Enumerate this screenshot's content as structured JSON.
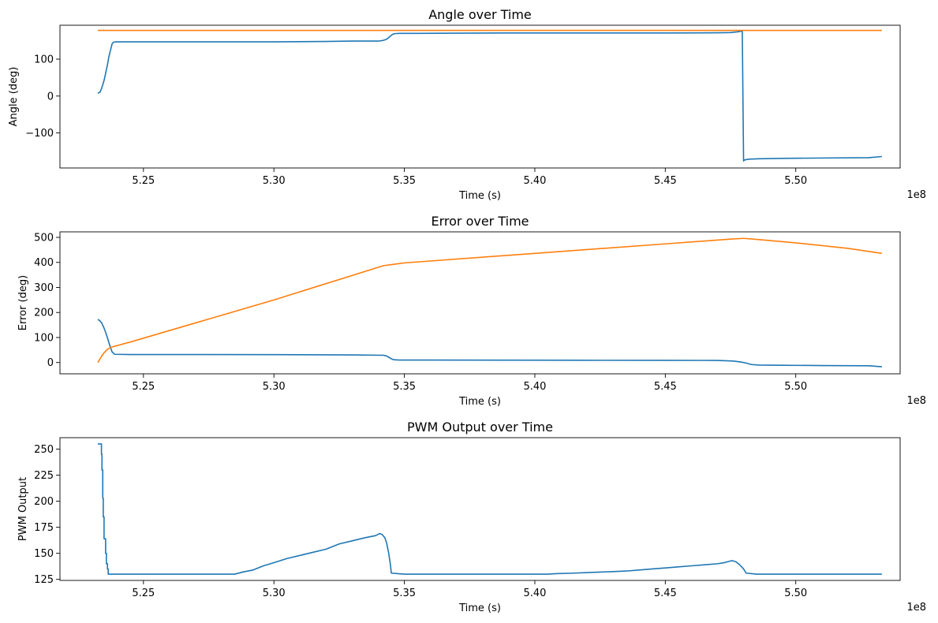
{
  "offset_text": "1e8",
  "chart_data": [
    {
      "type": "line",
      "title": "Angle over Time",
      "xlabel": "Time (s)",
      "ylabel": "Angle (deg)",
      "x_offset": "1e8",
      "xlim": [
        5.218,
        5.54
      ],
      "ylim": [
        -195,
        192
      ],
      "xticks": [
        5.25,
        5.3,
        5.35,
        5.4,
        5.45,
        5.5
      ],
      "xtick_labels": [
        "5.25",
        "5.30",
        "5.35",
        "5.40",
        "5.45",
        "5.50"
      ],
      "yticks": [
        -100,
        0,
        100
      ],
      "ytick_labels": [
        "−100",
        "0",
        "100"
      ],
      "series": [
        {
          "color": "#1f77b4",
          "x": [
            5.2325,
            5.2333,
            5.2338,
            5.2344,
            5.235,
            5.2356,
            5.2362,
            5.2368,
            5.2375,
            5.238,
            5.2385,
            5.2395,
            5.245,
            5.26,
            5.28,
            5.3,
            5.32,
            5.33,
            5.34,
            5.342,
            5.3432,
            5.3442,
            5.3452,
            5.346,
            5.348,
            5.355,
            5.37,
            5.39,
            5.42,
            5.45,
            5.47,
            5.475,
            5.4775,
            5.4795,
            5.48,
            5.4801,
            5.4805,
            5.482,
            5.486,
            5.495,
            5.51,
            5.528,
            5.533
          ],
          "y": [
            8,
            10,
            18,
            30,
            45,
            65,
            85,
            108,
            128,
            142,
            146,
            147,
            147,
            147,
            147,
            147,
            148,
            149,
            149,
            151,
            154,
            160,
            166,
            169,
            170,
            170,
            170.5,
            171,
            171,
            171,
            171.5,
            172,
            174,
            176,
            -176,
            -175,
            -173,
            -171,
            -170,
            -169,
            -168,
            -167,
            -164
          ]
        },
        {
          "color": "#ff7f0e",
          "x": [
            5.2325,
            5.533
          ],
          "y": [
            178,
            178
          ]
        }
      ]
    },
    {
      "type": "line",
      "title": "Error over Time",
      "xlabel": "Time (s)",
      "ylabel": "Error (deg)",
      "x_offset": "1e8",
      "xlim": [
        5.218,
        5.54
      ],
      "ylim": [
        -45,
        522
      ],
      "xticks": [
        5.25,
        5.3,
        5.35,
        5.4,
        5.45,
        5.5
      ],
      "xtick_labels": [
        "5.25",
        "5.30",
        "5.35",
        "5.40",
        "5.45",
        "5.50"
      ],
      "yticks": [
        0,
        100,
        200,
        300,
        400,
        500
      ],
      "ytick_labels": [
        "0",
        "100",
        "200",
        "300",
        "400",
        "500"
      ],
      "series": [
        {
          "color": "#1f77b4",
          "x": [
            5.2325,
            5.2332,
            5.234,
            5.2348,
            5.2356,
            5.2364,
            5.2372,
            5.238,
            5.239,
            5.245,
            5.27,
            5.3,
            5.33,
            5.342,
            5.3432,
            5.3442,
            5.3452,
            5.346,
            5.348,
            5.36,
            5.39,
            5.42,
            5.45,
            5.47,
            5.476,
            5.479,
            5.481,
            5.483,
            5.486,
            5.495,
            5.51,
            5.528,
            5.533
          ],
          "y": [
            172,
            168,
            158,
            140,
            118,
            92,
            65,
            42,
            33,
            32,
            32,
            31.5,
            30.5,
            29,
            26,
            20,
            14,
            11,
            10,
            10,
            9.5,
            9,
            8.8,
            8.5,
            6,
            2,
            -2,
            -8,
            -10,
            -11,
            -12,
            -13,
            -17
          ]
        },
        {
          "color": "#ff7f0e",
          "x": [
            5.2325,
            5.2332,
            5.234,
            5.235,
            5.236,
            5.237,
            5.238,
            5.239,
            5.24,
            5.245,
            5.3,
            5.342,
            5.345,
            5.35,
            5.4,
            5.45,
            5.475,
            5.48,
            5.485,
            5.5,
            5.52,
            5.533
          ],
          "y": [
            0,
            12,
            26,
            40,
            51,
            58,
            62,
            65,
            68,
            82,
            250,
            387,
            391,
            398,
            436,
            474,
            493,
            496,
            492,
            478,
            456,
            436
          ]
        }
      ]
    },
    {
      "type": "line",
      "title": "PWM Output over Time",
      "xlabel": "Time (s)",
      "ylabel": "PWM Output",
      "x_offset": "1e8",
      "xlim": [
        5.218,
        5.54
      ],
      "ylim": [
        124,
        261
      ],
      "xticks": [
        5.25,
        5.3,
        5.35,
        5.4,
        5.45,
        5.5
      ],
      "xtick_labels": [
        "5.25",
        "5.30",
        "5.35",
        "5.40",
        "5.45",
        "5.50"
      ],
      "yticks": [
        125,
        150,
        175,
        200,
        225,
        250
      ],
      "ytick_labels": [
        "125",
        "150",
        "175",
        "200",
        "225",
        "250"
      ],
      "series": [
        {
          "color": "#1f77b4",
          "x": [
            5.2325,
            5.2339,
            5.2339,
            5.2341,
            5.2341,
            5.2344,
            5.2344,
            5.2346,
            5.2346,
            5.2349,
            5.2349,
            5.2355,
            5.2355,
            5.2358,
            5.2358,
            5.2362,
            5.2362,
            5.2365,
            5.2365,
            5.24,
            5.27,
            5.285,
            5.288,
            5.292,
            5.296,
            5.3,
            5.305,
            5.31,
            5.315,
            5.32,
            5.325,
            5.33,
            5.335,
            5.339,
            5.3405,
            5.3415,
            5.3425,
            5.3432,
            5.344,
            5.3446,
            5.345,
            5.35,
            5.38,
            5.405,
            5.408,
            5.415,
            5.42,
            5.425,
            5.43,
            5.435,
            5.44,
            5.445,
            5.45,
            5.455,
            5.46,
            5.465,
            5.47,
            5.4725,
            5.474,
            5.4755,
            5.477,
            5.4785,
            5.48,
            5.481,
            5.485,
            5.5,
            5.52,
            5.533
          ],
          "y": [
            255,
            255,
            245,
            245,
            230,
            230,
            203,
            203,
            185,
            185,
            164,
            164,
            150,
            150,
            140,
            140,
            135,
            135,
            130,
            130,
            130,
            130,
            132,
            134,
            138,
            141,
            145,
            148,
            151,
            154,
            159,
            162,
            165,
            167,
            169,
            168,
            165,
            160,
            150,
            140,
            131,
            130,
            130,
            130,
            130.5,
            131,
            131.5,
            132,
            132.5,
            133,
            134,
            135,
            136,
            137,
            138,
            139,
            140,
            141,
            142,
            143,
            142,
            139,
            135,
            131,
            130,
            130,
            130,
            130
          ]
        }
      ]
    }
  ]
}
